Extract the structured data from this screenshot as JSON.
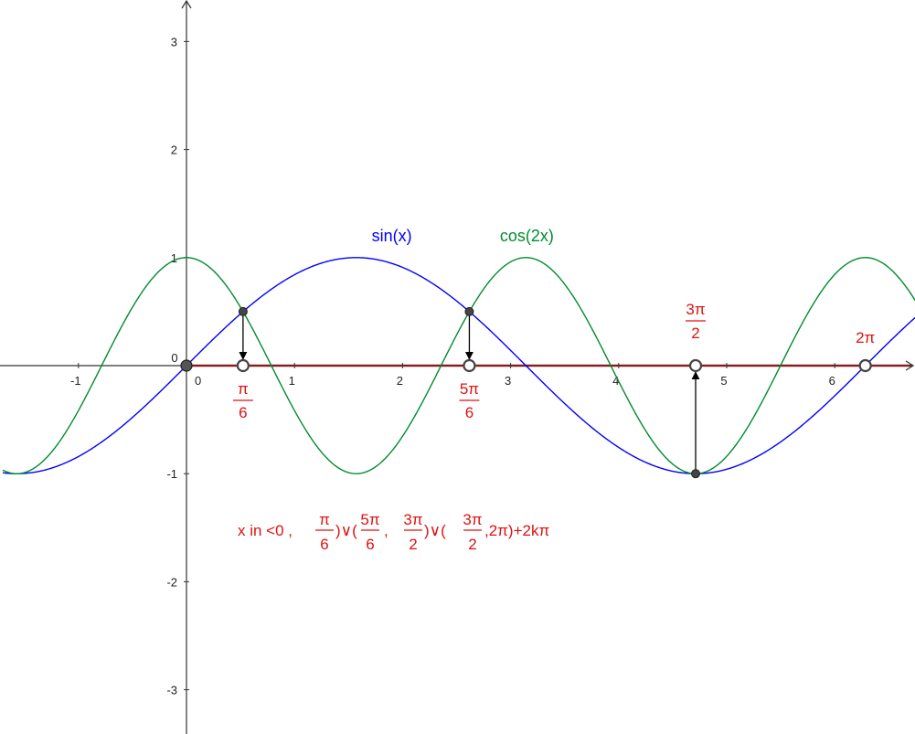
{
  "chart_data": {
    "type": "line",
    "xlim": [
      -1.7,
      6.75
    ],
    "ylim": [
      -3.4,
      3.4
    ],
    "grid": false,
    "x_ticks": [
      -1,
      0,
      1,
      2,
      3,
      4,
      5,
      6
    ],
    "x_tick_labels": [
      "-1",
      "0",
      "1",
      "2",
      "3",
      "4",
      "5",
      "6"
    ],
    "y_ticks": [
      -3,
      -2,
      -1,
      1,
      2,
      3
    ],
    "y_tick_labels": [
      "-3",
      "-2",
      "-1",
      "1",
      "2",
      "3"
    ],
    "series": [
      {
        "name": "sin(x)",
        "function": "sin(x)",
        "color": "#0000ff",
        "label_at": [
          1.9,
          1.15
        ]
      },
      {
        "name": "cos(2x)",
        "function": "cos(2x)",
        "color": "#008c2e",
        "label_at": [
          3.15,
          1.15
        ]
      }
    ],
    "intersection_points": [
      {
        "x": 0.5236,
        "y": 0.5
      },
      {
        "x": 2.618,
        "y": 0.5
      },
      {
        "x": 4.7124,
        "y": -1
      }
    ],
    "solution_axis_points": [
      {
        "x": 0,
        "closed": true
      },
      {
        "x": 0.5236,
        "closed": false,
        "label_num": "π",
        "label_den": "6",
        "label_pos": "below"
      },
      {
        "x": 2.618,
        "closed": false,
        "label_num": "5π",
        "label_den": "6",
        "label_pos": "below"
      },
      {
        "x": 4.7124,
        "closed": false,
        "label_num": "3π",
        "label_den": "2",
        "label_pos": "above"
      },
      {
        "x": 6.2832,
        "closed": false,
        "label_num": "2π",
        "label_den": "",
        "label_pos": "above"
      }
    ],
    "solution_segment": [
      0,
      6.75
    ],
    "solution_color": "#e01010",
    "answer_formula": {
      "prefix": "x  in  <0 ,",
      "f1_num": "π",
      "f1_den": "6",
      "mid1": ")∨(",
      "f2_num": "5π",
      "f2_den": "6",
      "sep1": ",",
      "f3_num": "3π",
      "f3_den": "2",
      "mid2": ")∨(",
      "f4_num": "3π",
      "f4_den": "2",
      "suffix": ",2π)+2kπ"
    }
  }
}
